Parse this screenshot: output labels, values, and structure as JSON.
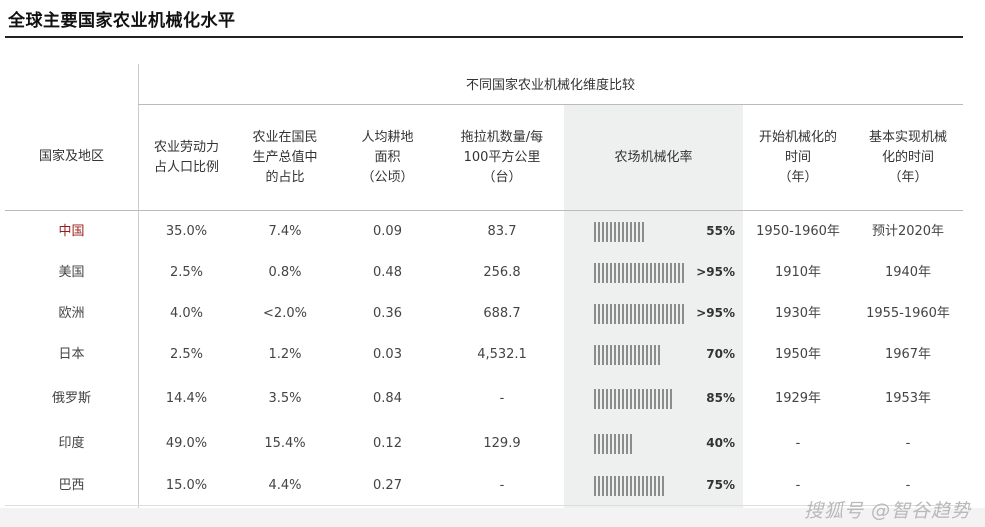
{
  "title": "全球主要国家农业机械化水平",
  "chart_data": {
    "type": "table",
    "group_header": "不同国家农业机械化维度比较",
    "columns": [
      "国家及地区",
      "农业劳动力\n占人口比例",
      "农业在国民\n生产总值中\n的占比",
      "人均耕地\n面积\n（公顷）",
      "拖拉机数量/每\n100平方公里\n（台）",
      "农场机械化率",
      "开始机械化的\n时间\n（年）",
      "基本实现机械\n化的时间\n（年）"
    ],
    "rows": [
      {
        "country": "中国",
        "labor": "35.0%",
        "gdp": "7.4%",
        "land": "0.09",
        "tractors": "83.7",
        "rate": 55,
        "rate_label": "55%",
        "start": "1950-1960年",
        "done": "预计2020年"
      },
      {
        "country": "美国",
        "labor": "2.5%",
        "gdp": "0.8%",
        "land": "0.48",
        "tractors": "256.8",
        "rate": 95,
        "rate_label": ">95%",
        "start": "1910年",
        "done": "1940年"
      },
      {
        "country": "欧洲",
        "labor": "4.0%",
        "gdp": "<2.0%",
        "land": "0.36",
        "tractors": "688.7",
        "rate": 95,
        "rate_label": ">95%",
        "start": "1930年",
        "done": "1955-1960年"
      },
      {
        "country": "日本",
        "labor": "2.5%",
        "gdp": "1.2%",
        "land": "0.03",
        "tractors": "4,532.1",
        "rate": 70,
        "rate_label": "70%",
        "start": "1950年",
        "done": "1967年"
      },
      {
        "country": "俄罗斯",
        "labor": "14.4%",
        "gdp": "3.5%",
        "land": "0.84",
        "tractors": "-",
        "rate": 85,
        "rate_label": "85%",
        "start": "1929年",
        "done": "1953年"
      },
      {
        "country": "印度",
        "labor": "49.0%",
        "gdp": "15.4%",
        "land": "0.12",
        "tractors": "129.9",
        "rate": 40,
        "rate_label": "40%",
        "start": "-",
        "done": "-"
      },
      {
        "country": "巴西",
        "labor": "15.0%",
        "gdp": "4.4%",
        "land": "0.27",
        "tractors": "-",
        "rate": 75,
        "rate_label": "75%",
        "start": "-",
        "done": "-"
      }
    ]
  },
  "watermark": "搜狐号 @智谷趋势"
}
